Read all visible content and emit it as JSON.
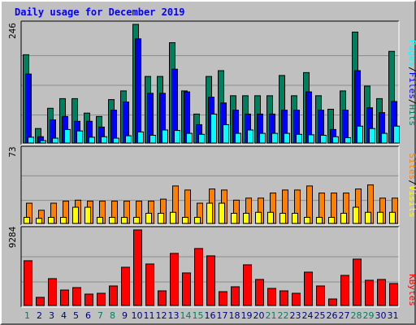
{
  "title": "Daily usage for December 2019",
  "colors": {
    "hits": "#007f5f",
    "files": "#0000ff",
    "pages": "#00ffff",
    "visits": "#ffff00",
    "sites": "#ff8000",
    "kbytes": "#ff0000",
    "weekend_label": "#00805c",
    "weekday_label": "#000080"
  },
  "chart_data": [
    {
      "type": "bar",
      "panel": "hits-files-pages",
      "ymax_label": "246",
      "ylim": [
        0,
        246
      ],
      "legend": [
        "Pages",
        "/",
        "Files",
        "/",
        "Hits"
      ],
      "categories": [
        "1",
        "2",
        "3",
        "4",
        "5",
        "6",
        "7",
        "8",
        "9",
        "10",
        "11",
        "12",
        "13",
        "14",
        "15",
        "16",
        "17",
        "18",
        "19",
        "20",
        "21",
        "22",
        "23",
        "24",
        "25",
        "26",
        "27",
        "28",
        "29",
        "30",
        "31"
      ],
      "series": [
        {
          "name": "Hits",
          "values": [
            183,
            30,
            72,
            92,
            92,
            62,
            55,
            90,
            108,
            246,
            138,
            138,
            208,
            108,
            60,
            138,
            150,
            98,
            98,
            98,
            98,
            140,
            98,
            146,
            98,
            70,
            108,
            230,
            118,
            92,
            190
          ]
        },
        {
          "name": "Files",
          "values": [
            143,
            13,
            48,
            55,
            45,
            45,
            33,
            68,
            85,
            216,
            103,
            103,
            153,
            106,
            38,
            95,
            83,
            68,
            60,
            60,
            60,
            68,
            68,
            106,
            68,
            28,
            68,
            150,
            73,
            63,
            86
          ]
        },
        {
          "name": "Pages",
          "values": [
            12,
            5,
            10,
            28,
            25,
            12,
            13,
            10,
            15,
            23,
            16,
            27,
            26,
            20,
            18,
            60,
            38,
            20,
            27,
            20,
            20,
            20,
            18,
            17,
            16,
            13,
            11,
            35,
            30,
            20,
            35
          ]
        }
      ]
    },
    {
      "type": "bar",
      "panel": "visits-sites",
      "ymax_label": "73",
      "ylim": [
        0,
        73
      ],
      "legend": [
        "Sites",
        "/",
        "Visits"
      ],
      "categories": [
        "1",
        "2",
        "3",
        "4",
        "5",
        "6",
        "7",
        "8",
        "9",
        "10",
        "11",
        "12",
        "13",
        "14",
        "15",
        "16",
        "17",
        "18",
        "19",
        "20",
        "21",
        "22",
        "23",
        "24",
        "25",
        "26",
        "27",
        "28",
        "29",
        "30",
        "31"
      ],
      "series": [
        {
          "name": "Visits",
          "values": [
            6,
            5,
            6,
            6,
            16,
            16,
            6,
            6,
            6,
            6,
            10,
            10,
            11,
            6,
            6,
            20,
            20,
            10,
            10,
            11,
            11,
            10,
            10,
            6,
            6,
            6,
            10,
            16,
            11,
            11,
            11
          ]
        },
        {
          "name": "Sites",
          "values": [
            20,
            13,
            20,
            22,
            23,
            22,
            22,
            22,
            22,
            22,
            22,
            24,
            37,
            33,
            20,
            34,
            33,
            23,
            25,
            25,
            30,
            33,
            33,
            37,
            30,
            30,
            30,
            34,
            38,
            25,
            25
          ]
        }
      ]
    },
    {
      "type": "bar",
      "panel": "kbytes",
      "ymax_label": "9284",
      "ylim": [
        0,
        9284
      ],
      "legend": [
        "KBytes"
      ],
      "categories": [
        "1",
        "2",
        "3",
        "4",
        "5",
        "6",
        "7",
        "8",
        "9",
        "10",
        "11",
        "12",
        "13",
        "14",
        "15",
        "16",
        "17",
        "18",
        "19",
        "20",
        "21",
        "22",
        "23",
        "24",
        "25",
        "26",
        "27",
        "28",
        "29",
        "30",
        "31"
      ],
      "series": [
        {
          "name": "KBytes",
          "values": [
            5500,
            1000,
            3300,
            1900,
            2200,
            1400,
            1500,
            2400,
            4700,
            9284,
            5100,
            1800,
            6400,
            4000,
            7000,
            6100,
            1700,
            2300,
            5000,
            3200,
            2100,
            1800,
            1500,
            4100,
            2400,
            800,
            3700,
            5700,
            3100,
            3200,
            2700
          ]
        }
      ]
    }
  ],
  "x_labels": [
    {
      "day": "1",
      "weekend": true
    },
    {
      "day": "2",
      "weekend": false
    },
    {
      "day": "3",
      "weekend": false
    },
    {
      "day": "4",
      "weekend": false
    },
    {
      "day": "5",
      "weekend": false
    },
    {
      "day": "6",
      "weekend": false
    },
    {
      "day": "7",
      "weekend": true
    },
    {
      "day": "8",
      "weekend": true
    },
    {
      "day": "9",
      "weekend": false
    },
    {
      "day": "10",
      "weekend": false
    },
    {
      "day": "11",
      "weekend": false
    },
    {
      "day": "12",
      "weekend": false
    },
    {
      "day": "13",
      "weekend": false
    },
    {
      "day": "14",
      "weekend": true
    },
    {
      "day": "15",
      "weekend": true
    },
    {
      "day": "16",
      "weekend": false
    },
    {
      "day": "17",
      "weekend": false
    },
    {
      "day": "18",
      "weekend": false
    },
    {
      "day": "19",
      "weekend": false
    },
    {
      "day": "20",
      "weekend": false
    },
    {
      "day": "21",
      "weekend": true
    },
    {
      "day": "22",
      "weekend": true
    },
    {
      "day": "23",
      "weekend": false
    },
    {
      "day": "24",
      "weekend": false
    },
    {
      "day": "25",
      "weekend": false
    },
    {
      "day": "26",
      "weekend": false
    },
    {
      "day": "27",
      "weekend": false
    },
    {
      "day": "28",
      "weekend": true
    },
    {
      "day": "29",
      "weekend": true
    },
    {
      "day": "30",
      "weekend": false
    },
    {
      "day": "31",
      "weekend": false
    }
  ]
}
